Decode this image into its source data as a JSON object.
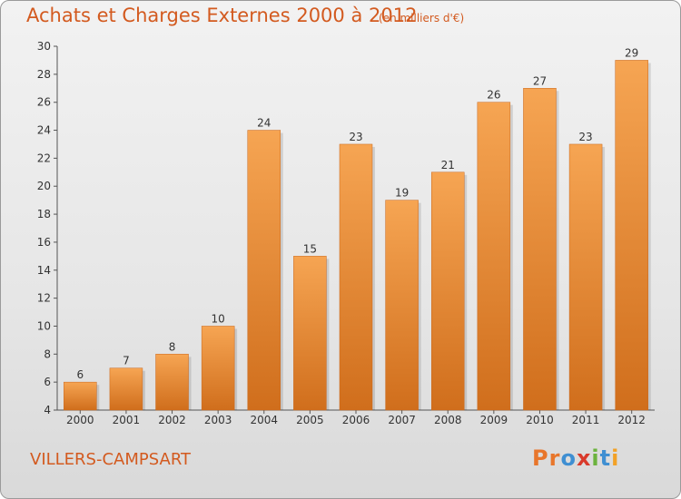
{
  "title": "Achats et Charges Externes 2000 à 2012",
  "subtitle": "(en milliers d'€)",
  "commune": "VILLERS-CAMPSART",
  "logo": {
    "text": "Proxiti",
    "letters": [
      "P",
      "r",
      "o",
      "x",
      "i",
      "t",
      "i"
    ],
    "colors": [
      "#e8762b",
      "#e8762b",
      "#3f8fd2",
      "#d93a2b",
      "#6cb33e",
      "#3f8fd2",
      "#f2a126"
    ]
  },
  "colors": {
    "accent": "#d35a1f",
    "bar_top": "#f6a553",
    "bar_bottom": "#d06e1c"
  },
  "chart_data": {
    "type": "bar",
    "categories": [
      "2000",
      "2001",
      "2002",
      "2003",
      "2004",
      "2005",
      "2006",
      "2007",
      "2008",
      "2009",
      "2010",
      "2011",
      "2012"
    ],
    "values": [
      6,
      7,
      8,
      10,
      24,
      15,
      23,
      19,
      21,
      26,
      27,
      23,
      29
    ],
    "title": "Achats et Charges Externes 2000 à 2012",
    "xlabel": "",
    "ylabel": "",
    "ylim": [
      4,
      30
    ],
    "yticks": [
      4,
      6,
      8,
      10,
      12,
      14,
      16,
      18,
      20,
      22,
      24,
      26,
      28,
      30
    ],
    "grid": false
  }
}
